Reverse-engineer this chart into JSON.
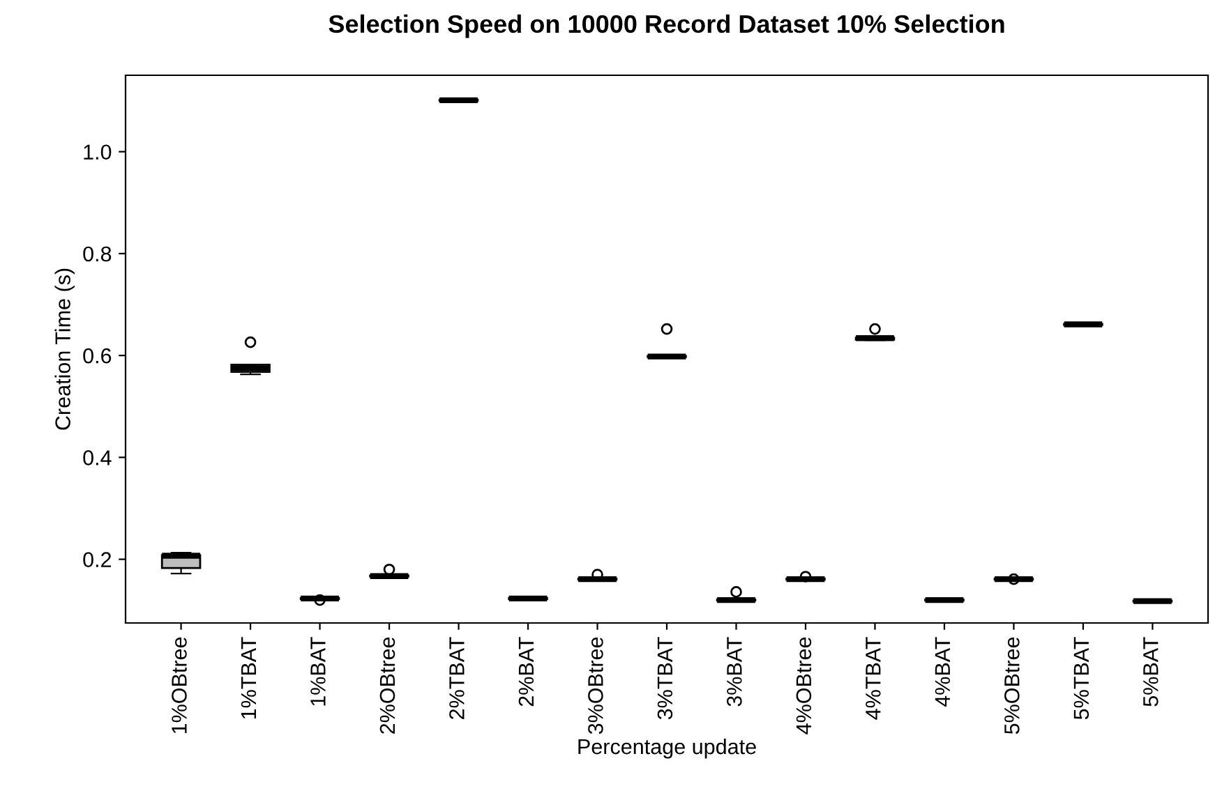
{
  "chart_data": {
    "type": "box",
    "title": "Selection Speed on 10000 Record Dataset 10% Selection",
    "xlabel": "Percentage update",
    "ylabel": "Creation Time (s)",
    "categories": [
      "1%OBtree",
      "1%TBAT",
      "1%BAT",
      "2%OBtree",
      "2%TBAT",
      "2%BAT",
      "3%OBtree",
      "3%TBAT",
      "3%BAT",
      "4%OBtree",
      "4%TBAT",
      "4%BAT",
      "5%OBtree",
      "5%TBAT",
      "5%BAT"
    ],
    "colors": [
      "#bebebe",
      "#ffffff",
      "#ffffff",
      "#ffffff",
      "#ffffff",
      "#ffffff",
      "#ffffff",
      "#ffffff",
      "#ffffff",
      "#ffffff",
      "#ffffff",
      "#ffffff",
      "#ffffff",
      "#ffffff",
      "#ffffff"
    ],
    "boxes": [
      {
        "low": 0.172,
        "q1": 0.183,
        "median": 0.207,
        "q3": 0.208,
        "high": 0.213
      },
      {
        "low": 0.563,
        "q1": 0.568,
        "median": 0.575,
        "q3": 0.582,
        "high": 0.582,
        "outliers": [
          0.626
        ]
      },
      {
        "low": 0.122,
        "q1": 0.122,
        "median": 0.123,
        "q3": 0.124,
        "high": 0.124,
        "outliers": [
          0.12
        ]
      },
      {
        "low": 0.166,
        "q1": 0.166,
        "median": 0.167,
        "q3": 0.168,
        "high": 0.168,
        "outliers": [
          0.18
        ]
      },
      {
        "low": 1.1,
        "q1": 1.1,
        "median": 1.101,
        "q3": 1.102,
        "high": 1.103
      },
      {
        "low": 0.122,
        "q1": 0.122,
        "median": 0.123,
        "q3": 0.124,
        "high": 0.124
      },
      {
        "low": 0.16,
        "q1": 0.16,
        "median": 0.161,
        "q3": 0.162,
        "high": 0.162,
        "outliers": [
          0.17
        ]
      },
      {
        "low": 0.597,
        "q1": 0.597,
        "median": 0.598,
        "q3": 0.599,
        "high": 0.599,
        "outliers": [
          0.652
        ]
      },
      {
        "low": 0.119,
        "q1": 0.119,
        "median": 0.12,
        "q3": 0.121,
        "high": 0.121,
        "outliers": [
          0.136
        ]
      },
      {
        "low": 0.16,
        "q1": 0.16,
        "median": 0.161,
        "q3": 0.162,
        "high": 0.162,
        "outliers": [
          0.166
        ]
      },
      {
        "low": 0.63,
        "q1": 0.631,
        "median": 0.634,
        "q3": 0.635,
        "high": 0.635,
        "outliers": [
          0.652
        ]
      },
      {
        "low": 0.119,
        "q1": 0.119,
        "median": 0.12,
        "q3": 0.121,
        "high": 0.121
      },
      {
        "low": 0.16,
        "q1": 0.16,
        "median": 0.161,
        "q3": 0.162,
        "high": 0.162,
        "outliers": [
          0.161
        ]
      },
      {
        "low": 0.66,
        "q1": 0.66,
        "median": 0.661,
        "q3": 0.662,
        "high": 0.662
      },
      {
        "low": 0.117,
        "q1": 0.117,
        "median": 0.118,
        "q3": 0.119,
        "high": 0.119
      }
    ],
    "ylim": [
      0.075,
      1.15
    ],
    "yticks": [
      {
        "value": 0.2,
        "label": "0.2"
      },
      {
        "value": 0.4,
        "label": "0.4"
      },
      {
        "value": 0.6,
        "label": "0.6"
      },
      {
        "value": 0.8,
        "label": "0.8"
      },
      {
        "value": 1.0,
        "label": "1.0"
      }
    ],
    "grid": false
  }
}
